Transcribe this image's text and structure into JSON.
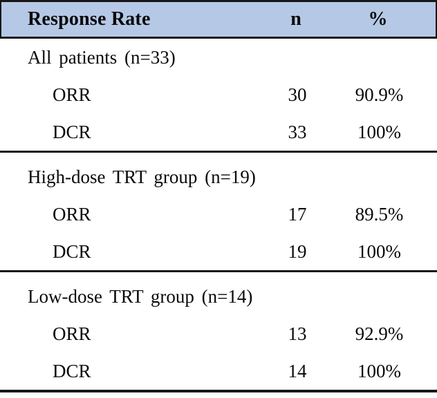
{
  "colors": {
    "header_bg": "#b5c8e6",
    "border_dark": "#161616",
    "text": "#0a0a0a",
    "page_bg": "#ffffff"
  },
  "table": {
    "header": {
      "col1": "Response Rate",
      "col2": "n",
      "col3": "%"
    },
    "sections": [
      {
        "group_label": "All patients (n=33)",
        "rows": [
          {
            "label": "ORR",
            "n": "30",
            "pct": "90.9%"
          },
          {
            "label": "DCR",
            "n": "33",
            "pct": "100%"
          }
        ]
      },
      {
        "group_label": "High-dose TRT group (n=19)",
        "rows": [
          {
            "label": "ORR",
            "n": "17",
            "pct": "89.5%"
          },
          {
            "label": "DCR",
            "n": "19",
            "pct": "100%"
          }
        ]
      },
      {
        "group_label": "Low-dose TRT group (n=14)",
        "rows": [
          {
            "label": "ORR",
            "n": "13",
            "pct": "92.9%"
          },
          {
            "label": "DCR",
            "n": "14",
            "pct": "100%"
          }
        ]
      }
    ]
  },
  "chart_data": {
    "type": "table",
    "title": "Response Rate",
    "columns": [
      "Response Rate",
      "n",
      "%"
    ],
    "groups": [
      {
        "group": "All patients",
        "group_n": 33,
        "measures": [
          {
            "name": "ORR",
            "n": 30,
            "pct": 90.9
          },
          {
            "name": "DCR",
            "n": 33,
            "pct": 100
          }
        ]
      },
      {
        "group": "High-dose TRT group",
        "group_n": 19,
        "measures": [
          {
            "name": "ORR",
            "n": 17,
            "pct": 89.5
          },
          {
            "name": "DCR",
            "n": 19,
            "pct": 100
          }
        ]
      },
      {
        "group": "Low-dose TRT group",
        "group_n": 14,
        "measures": [
          {
            "name": "ORR",
            "n": 13,
            "pct": 92.9
          },
          {
            "name": "DCR",
            "n": 14,
            "pct": 100
          }
        ]
      }
    ]
  }
}
